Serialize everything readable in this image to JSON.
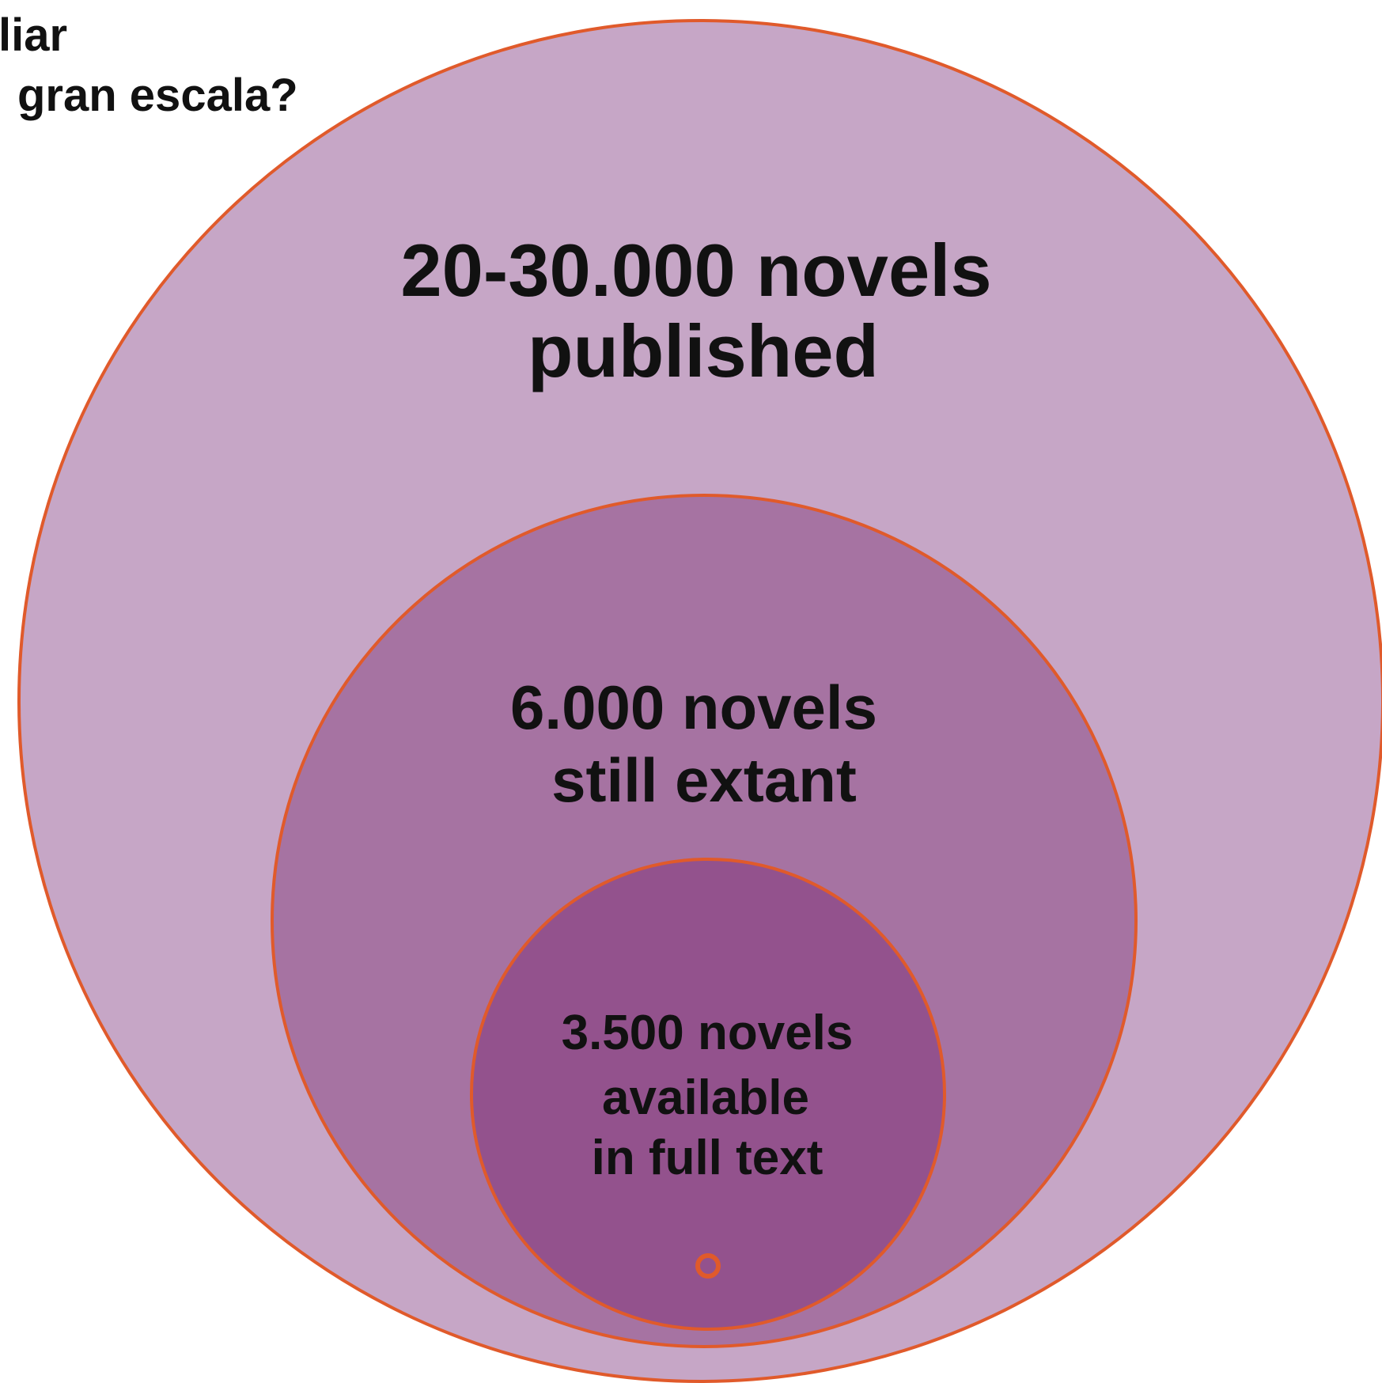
{
  "heading": {
    "lines": [
      "liar",
      "gran escala?"
    ]
  },
  "circles": {
    "published": {
      "lines": [
        "20-30.000 novels",
        "published"
      ],
      "fill": "#c6a6c6",
      "stroke": "#e05a2b"
    },
    "extant": {
      "lines": [
        "6.000 novels",
        "still extant"
      ],
      "fill": "#a673a2",
      "stroke": "#e05a2b"
    },
    "full_text": {
      "lines": [
        "3.500 novels",
        "available",
        "in full text"
      ],
      "fill": "#93528d",
      "stroke": "#e05a2b"
    },
    "dot": {
      "fill": "#93528d",
      "stroke": "#e05a2b"
    }
  }
}
